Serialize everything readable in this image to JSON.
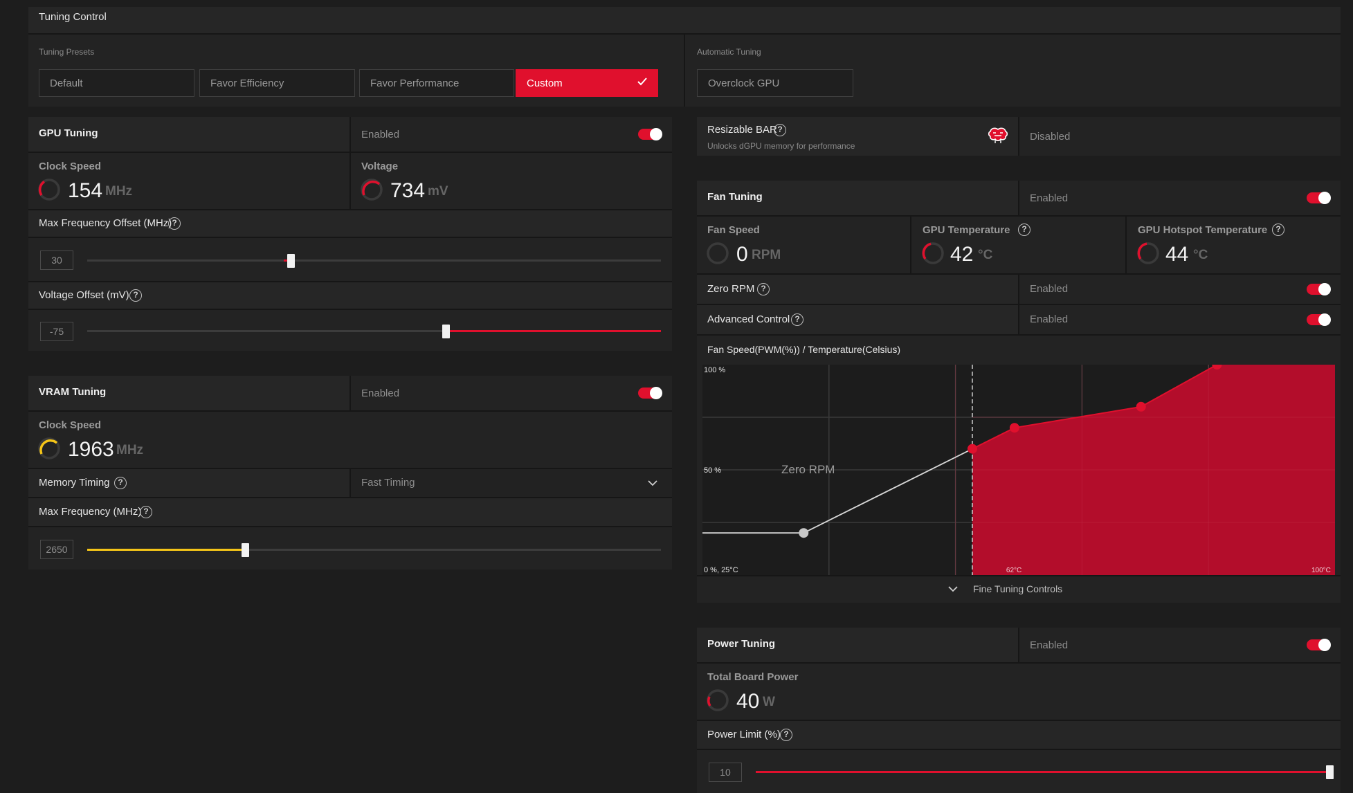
{
  "tuning_control": {
    "title": "Tuning Control",
    "presets_label": "Tuning Presets",
    "presets": [
      "Default",
      "Favor Efficiency",
      "Favor Performance",
      "Custom"
    ],
    "selected_preset": "Custom",
    "auto_label": "Automatic Tuning",
    "auto_button": "Overclock GPU"
  },
  "gpu_tuning": {
    "title": "GPU Tuning",
    "status": "Enabled",
    "clock_label": "Clock Speed",
    "clock_value": "154",
    "clock_unit": "MHz",
    "voltage_label": "Voltage",
    "voltage_value": "734",
    "voltage_unit": "mV",
    "max_freq_label": "Max Frequency Offset (MHz)",
    "max_freq_value": "30",
    "max_freq_fraction": 0.355,
    "volt_offset_label": "Voltage Offset (mV)",
    "volt_offset_value": "-75",
    "volt_offset_fraction": 0.625
  },
  "vram_tuning": {
    "title": "VRAM Tuning",
    "status": "Enabled",
    "clock_label": "Clock Speed",
    "clock_value": "1963",
    "clock_unit": "MHz",
    "timing_label": "Memory Timing",
    "timing_value": "Fast Timing",
    "max_freq_label": "Max Frequency (MHz)",
    "max_freq_value": "2650",
    "max_freq_fraction": 0.275
  },
  "resizable_bar": {
    "title": "Resizable BAR",
    "subtitle": "Unlocks dGPU memory for performance",
    "status": "Disabled"
  },
  "fan_tuning": {
    "title": "Fan Tuning",
    "status": "Enabled",
    "fan_speed_label": "Fan Speed",
    "fan_speed_value": "0",
    "fan_speed_unit": "RPM",
    "gpu_temp_label": "GPU Temperature",
    "gpu_temp_value": "42",
    "gpu_temp_unit": "°C",
    "hotspot_label": "GPU Hotspot Temperature",
    "hotspot_value": "44",
    "hotspot_unit": "°C",
    "zero_rpm_label": "Zero RPM",
    "zero_rpm_status": "Enabled",
    "adv_control_label": "Advanced Control",
    "adv_control_status": "Enabled",
    "curve_title": "Fan Speed(PWM(%)) / Temperature(Celsius)",
    "fine_tuning": "Fine Tuning Controls"
  },
  "chart_data": {
    "type": "area",
    "title": "Fan Speed(PWM(%)) / Temperature(Celsius)",
    "y_tick_labels": [
      "100 %",
      "50 %",
      "0 %, 25°C"
    ],
    "x_tick_labels": [
      "62°C",
      "100°C"
    ],
    "annotation": "Zero RPM",
    "xlim": [
      25,
      100
    ],
    "ylim": [
      0,
      100
    ],
    "points": [
      {
        "x": 37,
        "y": 20
      },
      {
        "x": 57,
        "y": 60
      },
      {
        "x": 62,
        "y": 70
      },
      {
        "x": 77,
        "y": 80
      },
      {
        "x": 86,
        "y": 100
      }
    ],
    "zero_rpm_threshold": 57
  },
  "power_tuning": {
    "title": "Power Tuning",
    "status": "Enabled",
    "tbp_label": "Total Board Power",
    "tbp_value": "40",
    "tbp_unit": "W",
    "limit_label": "Power Limit (%)",
    "limit_value": "10",
    "limit_fraction": 1.0
  },
  "colors": {
    "accent": "#e0102d",
    "vram_accent": "#f5c518",
    "chart_fill": "#b30d2b"
  }
}
